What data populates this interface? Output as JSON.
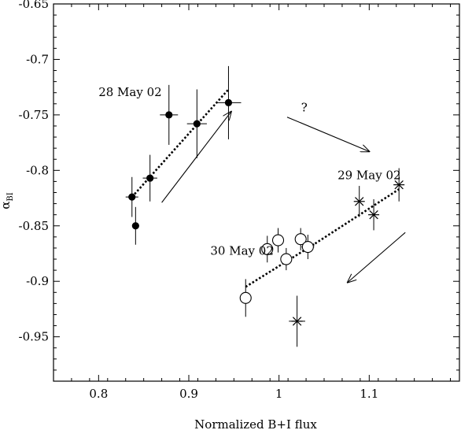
{
  "chart_data": {
    "type": "scatter",
    "xlabel": "Normalized B+I flux",
    "ylabel": "α",
    "ylabel_subscript": "BI",
    "xlim": [
      0.75,
      1.2
    ],
    "ylim": [
      -0.99,
      -0.65
    ],
    "x_ticks": [
      0.8,
      0.9,
      1.0,
      1.1
    ],
    "x_tick_labels": [
      "0.8",
      "0.9",
      "1",
      "1.1"
    ],
    "y_ticks": [
      -0.65,
      -0.7,
      -0.75,
      -0.8,
      -0.85,
      -0.9,
      -0.95
    ],
    "y_tick_labels": [
      "-0.65",
      "-0.7",
      "-0.75",
      "-0.8",
      "-0.85",
      "-0.9",
      "-0.95"
    ],
    "grid": false,
    "series": [
      {
        "name": "28 May 02",
        "marker": "filled-circle",
        "points": [
          {
            "x": 0.837,
            "y": -0.824,
            "xerr": 0.007,
            "yerr": 0.018
          },
          {
            "x": 0.841,
            "y": -0.85,
            "xerr": 0.0,
            "yerr": 0.017
          },
          {
            "x": 0.857,
            "y": -0.807,
            "xerr": 0.008,
            "yerr": 0.021
          },
          {
            "x": 0.878,
            "y": -0.75,
            "xerr": 0.01,
            "yerr": 0.027
          },
          {
            "x": 0.909,
            "y": -0.758,
            "xerr": 0.011,
            "yerr": 0.031
          },
          {
            "x": 0.944,
            "y": -0.739,
            "xerr": 0.014,
            "yerr": 0.033
          }
        ],
        "fit": {
          "x": [
            0.837,
            0.944
          ],
          "y": [
            -0.824,
            -0.727
          ]
        }
      },
      {
        "name": "29 May 02",
        "marker": "asterisk",
        "points": [
          {
            "x": 1.089,
            "y": -0.828,
            "xerr": 0.0,
            "yerr": 0.014
          },
          {
            "x": 1.105,
            "y": -0.84,
            "xerr": 0.0,
            "yerr": 0.014
          },
          {
            "x": 1.133,
            "y": -0.813,
            "xerr": 0.0,
            "yerr": 0.015
          },
          {
            "x": 1.02,
            "y": -0.936,
            "xerr": 0.009,
            "yerr": 0.023
          }
        ],
        "fit": {
          "x": [
            1.04,
            1.133
          ],
          "y": [
            -0.866,
            -0.817
          ]
        }
      },
      {
        "name": "30 May 02",
        "marker": "open-circle",
        "points": [
          {
            "x": 0.963,
            "y": -0.915,
            "xerr": 0.0,
            "yerr": 0.017
          },
          {
            "x": 0.987,
            "y": -0.871,
            "xerr": 0.0,
            "yerr": 0.012
          },
          {
            "x": 0.999,
            "y": -0.863,
            "xerr": 0.0,
            "yerr": 0.011
          },
          {
            "x": 1.008,
            "y": -0.88,
            "xerr": 0.0,
            "yerr": 0.01
          },
          {
            "x": 1.024,
            "y": -0.862,
            "xerr": 0.0,
            "yerr": 0.01
          },
          {
            "x": 1.032,
            "y": -0.869,
            "xerr": 0.007,
            "yerr": 0.011
          }
        ],
        "fit": {
          "x": [
            0.963,
            1.04
          ],
          "y": [
            -0.905,
            -0.866
          ]
        }
      }
    ],
    "annotations": [
      {
        "text": "28 May 02",
        "x": 0.835,
        "y": -0.733
      },
      {
        "text": "29 May 02",
        "x": 1.1,
        "y": -0.808
      },
      {
        "text": "30 May 02",
        "x": 0.959,
        "y": -0.876
      },
      {
        "text": "?",
        "x": 1.028,
        "y": -0.747
      }
    ],
    "arrows": [
      {
        "from": [
          0.87,
          -0.829
        ],
        "to": [
          0.947,
          -0.747
        ]
      },
      {
        "from": [
          1.009,
          -0.752
        ],
        "to": [
          1.1,
          -0.783
        ]
      },
      {
        "from": [
          1.14,
          -0.856
        ],
        "to": [
          1.076,
          -0.901
        ]
      }
    ]
  }
}
